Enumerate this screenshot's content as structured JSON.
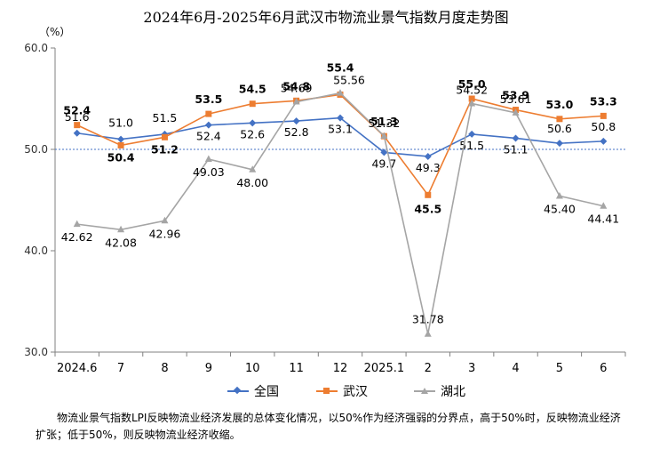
{
  "title": "2024年6月-2025年6月武汉市物流业景气指数月度走势图",
  "unit": "（%）",
  "footnote": "物流业景气指数LPI反映物流业经济发展的总体变化情况，以50%作为经济强弱的分界点，高于50%时，反映物流业经济扩张；低于50%，则反映物流业经济收缩。",
  "colors": {
    "national": "#4472c4",
    "wuhan": "#ed7d31",
    "hubei": "#a5a5a5"
  },
  "chart_data": {
    "type": "line",
    "title": "2024年6月-2025年6月武汉市物流业景气指数月度走势图",
    "ylabel": "（%）",
    "ylim": [
      30,
      60
    ],
    "yticks": [
      "30.0",
      "40.0",
      "50.0",
      "60.0"
    ],
    "reference_line": 50,
    "categories": [
      "2024.6",
      "7",
      "8",
      "9",
      "10",
      "11",
      "12",
      "2025.1",
      "2",
      "3",
      "4",
      "5",
      "6"
    ],
    "series": [
      {
        "name": "全国",
        "color": "#4472c4",
        "marker": "diamond",
        "values": [
          51.6,
          51.0,
          51.5,
          52.4,
          52.6,
          52.8,
          53.1,
          49.7,
          49.3,
          51.5,
          51.1,
          50.6,
          50.8
        ],
        "labels": [
          "51.6",
          "51.0",
          "51.5",
          "52.4",
          "52.6",
          "52.8",
          "53.1",
          "49.7",
          "49.3",
          "51.5",
          "51.1",
          "50.6",
          "50.8"
        ]
      },
      {
        "name": "武汉",
        "color": "#ed7d31",
        "marker": "square",
        "values": [
          52.4,
          50.4,
          51.2,
          53.5,
          54.5,
          54.8,
          55.4,
          51.3,
          45.5,
          55.0,
          53.9,
          53.0,
          53.3
        ],
        "labels": [
          "52.4",
          "50.4",
          "51.2",
          "53.5",
          "54.5",
          "54.8",
          "55.4",
          "51.3",
          "45.5",
          "55.0",
          "53.9",
          "53.0",
          "53.3"
        ]
      },
      {
        "name": "湖北",
        "color": "#a5a5a5",
        "marker": "triangle",
        "values": [
          42.62,
          42.08,
          42.96,
          49.03,
          48.0,
          54.69,
          55.56,
          51.32,
          31.78,
          54.52,
          53.61,
          45.4,
          44.41
        ],
        "labels": [
          "42.62",
          "42.08",
          "42.96",
          "49.03",
          "48.00",
          "54.69",
          "55.56",
          "51.32",
          "31.78",
          "54.52",
          "53.61",
          "45.40",
          "44.41"
        ]
      }
    ],
    "legend": [
      "全国",
      "武汉",
      "湖北"
    ],
    "legend_position": "bottom"
  }
}
